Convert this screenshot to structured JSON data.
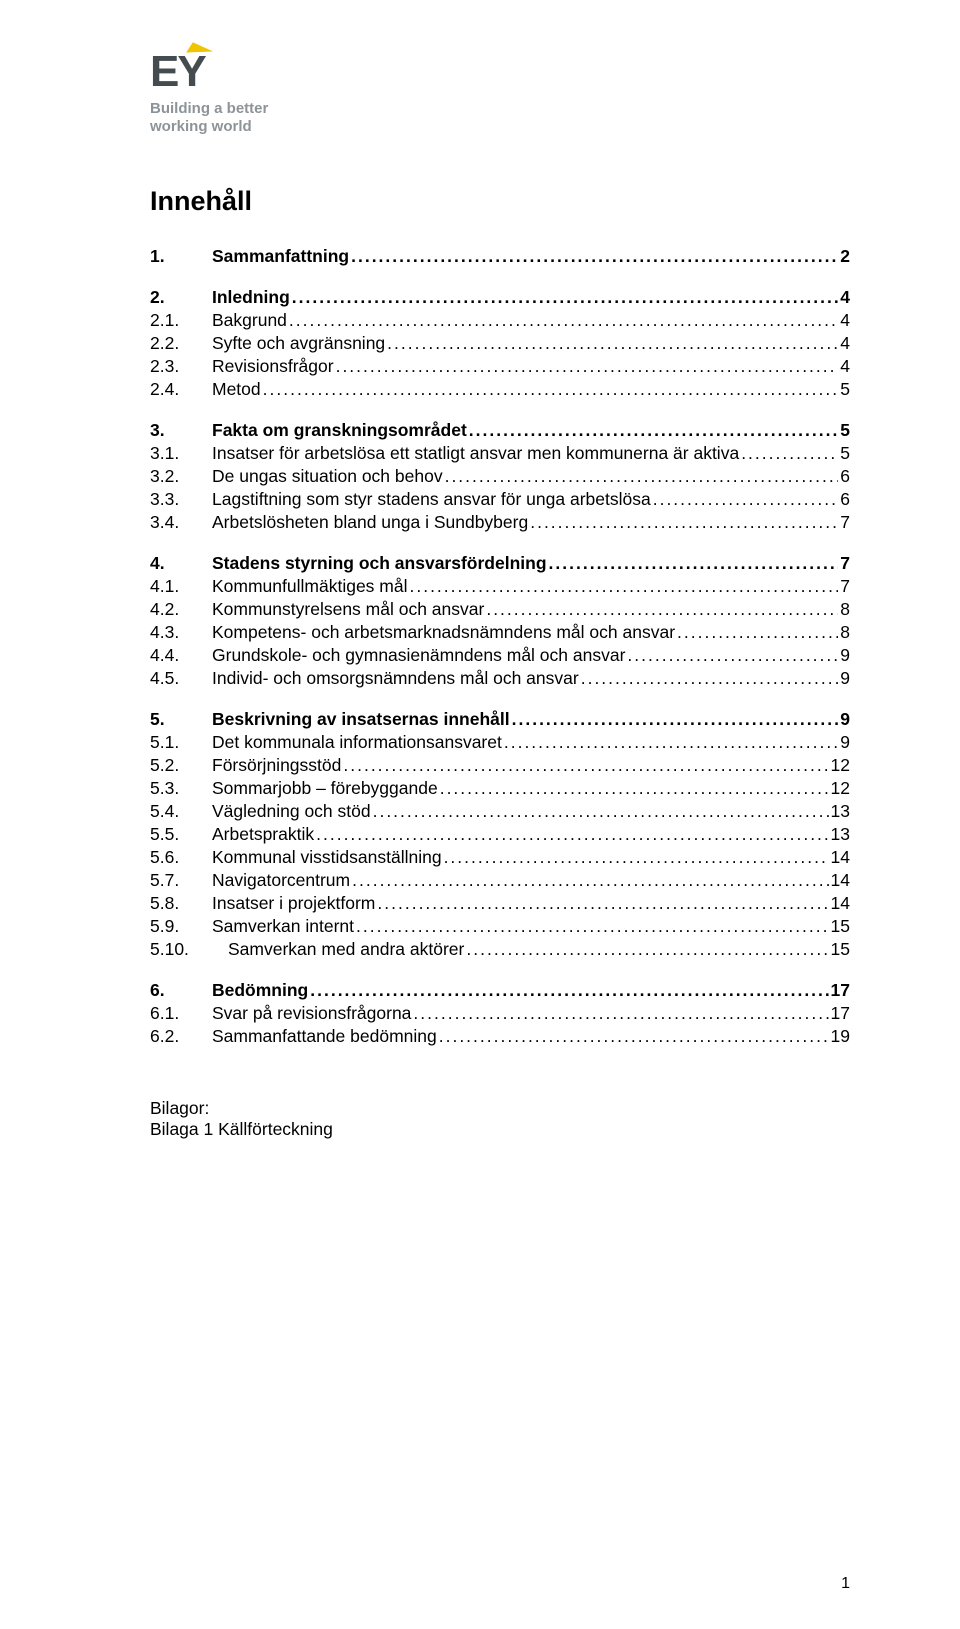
{
  "logo": {
    "tagline_line1": "Building a better",
    "tagline_line2": "working world"
  },
  "title": "Innehåll",
  "toc": [
    {
      "type": "group",
      "items": [
        {
          "num": "1.",
          "label": "Sammanfattning",
          "page": "2",
          "bold": true
        }
      ]
    },
    {
      "type": "group",
      "items": [
        {
          "num": "2.",
          "label": "Inledning",
          "page": "4",
          "bold": true
        },
        {
          "num": "2.1.",
          "label": "Bakgrund",
          "page": "4",
          "bold": false
        },
        {
          "num": "2.2.",
          "label": "Syfte och avgränsning",
          "page": "4",
          "bold": false
        },
        {
          "num": "2.3.",
          "label": "Revisionsfrågor",
          "page": "4",
          "bold": false
        },
        {
          "num": "2.4.",
          "label": "Metod",
          "page": "5",
          "bold": false
        }
      ]
    },
    {
      "type": "group",
      "items": [
        {
          "num": "3.",
          "label": "Fakta om granskningsområdet",
          "page": "5",
          "bold": true
        },
        {
          "num": "3.1.",
          "label": "Insatser för arbetslösa ett statligt ansvar men kommunerna är aktiva",
          "page": "5",
          "bold": false
        },
        {
          "num": "3.2.",
          "label": "De ungas situation och behov",
          "page": "6",
          "bold": false
        },
        {
          "num": "3.3.",
          "label": "Lagstiftning som styr stadens ansvar för unga arbetslösa",
          "page": "6",
          "bold": false
        },
        {
          "num": "3.4.",
          "label": "Arbetslösheten bland unga i Sundbyberg",
          "page": "7",
          "bold": false
        }
      ]
    },
    {
      "type": "group",
      "items": [
        {
          "num": "4.",
          "label": "Stadens styrning och ansvarsfördelning",
          "page": "7",
          "bold": true
        },
        {
          "num": "4.1.",
          "label": "Kommunfullmäktiges mål",
          "page": "7",
          "bold": false
        },
        {
          "num": "4.2.",
          "label": "Kommunstyrelsens mål och ansvar",
          "page": "8",
          "bold": false
        },
        {
          "num": "4.3.",
          "label": "Kompetens- och arbetsmarknadsnämndens mål och ansvar",
          "page": "8",
          "bold": false
        },
        {
          "num": "4.4.",
          "label": "Grundskole- och gymnasienämndens mål och ansvar",
          "page": "9",
          "bold": false
        },
        {
          "num": "4.5.",
          "label": "Individ- och omsorgsnämndens mål och ansvar",
          "page": "9",
          "bold": false
        }
      ]
    },
    {
      "type": "group",
      "items": [
        {
          "num": "5.",
          "label": "Beskrivning av insatsernas innehåll",
          "page": "9",
          "bold": true
        },
        {
          "num": "5.1.",
          "label": "Det kommunala informationsansvaret",
          "page": "9",
          "bold": false
        },
        {
          "num": "5.2.",
          "label": "Försörjningsstöd",
          "page": "12",
          "bold": false
        },
        {
          "num": "5.3.",
          "label": "Sommarjobb – förebyggande",
          "page": "12",
          "bold": false
        },
        {
          "num": "5.4.",
          "label": "Vägledning och stöd",
          "page": "13",
          "bold": false
        },
        {
          "num": "5.5.",
          "label": "Arbetspraktik",
          "page": "13",
          "bold": false
        },
        {
          "num": "5.6.",
          "label": "Kommunal visstidsanställning",
          "page": "14",
          "bold": false
        },
        {
          "num": "5.7.",
          "label": "Navigatorcentrum",
          "page": "14",
          "bold": false
        },
        {
          "num": "5.8.",
          "label": "Insatser i projektform",
          "page": "14",
          "bold": false
        },
        {
          "num": "5.9.",
          "label": "Samverkan internt",
          "page": "15",
          "bold": false
        },
        {
          "num": "5.10.",
          "label": "Samverkan med andra aktörer",
          "page": "15",
          "bold": false,
          "wide_num": true
        }
      ]
    },
    {
      "type": "group",
      "items": [
        {
          "num": "6.",
          "label": "Bedömning",
          "page": "17",
          "bold": true
        },
        {
          "num": "6.1.",
          "label": "Svar på revisionsfrågorna",
          "page": "17",
          "bold": false
        },
        {
          "num": "6.2.",
          "label": "Sammanfattande bedömning",
          "page": "19",
          "bold": false
        }
      ]
    }
  ],
  "appendix": {
    "heading": "Bilagor:",
    "line1": "Bilaga 1 Källförteckning"
  },
  "page_number": "1"
}
